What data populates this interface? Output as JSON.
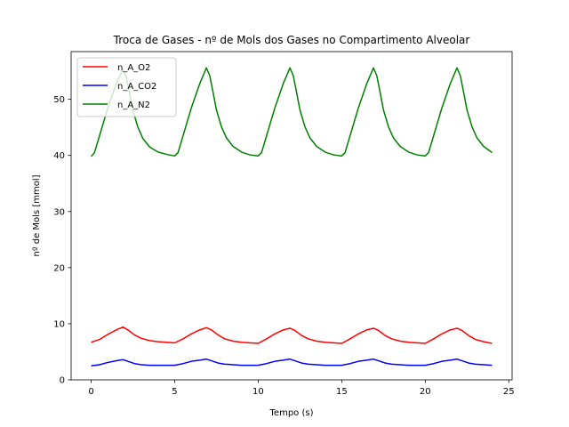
{
  "chart_data": {
    "type": "line",
    "title": "Troca de Gases - nº de Mols dos Gases no Compartimento Alveolar",
    "xlabel": "Tempo (s)",
    "ylabel": "nº de Mols [mmol]",
    "xlim": [
      -1.2,
      25.2
    ],
    "ylim": [
      0,
      58.5
    ],
    "xticks": [
      0,
      5,
      10,
      15,
      20,
      25
    ],
    "yticks": [
      0,
      10,
      20,
      30,
      40,
      50
    ],
    "grid": false,
    "legend_position": "upper-left",
    "series": [
      {
        "name": "n_A_O2",
        "color": "#ff0000",
        "x": [
          0,
          0.5,
          1.0,
          1.5,
          1.9,
          2.2,
          2.6,
          3.0,
          3.5,
          4.0,
          4.5,
          5.0,
          5.5,
          6.0,
          6.5,
          6.9,
          7.2,
          7.6,
          8.0,
          8.5,
          9.0,
          9.5,
          10.0,
          10.5,
          11.0,
          11.5,
          11.9,
          12.2,
          12.6,
          13.0,
          13.5,
          14.0,
          14.5,
          15.0,
          15.5,
          16.0,
          16.5,
          16.9,
          17.2,
          17.6,
          18.0,
          18.5,
          19.0,
          19.5,
          20.0,
          20.5,
          21.0,
          21.5,
          21.9,
          22.2,
          22.6,
          23.0,
          23.5,
          24.0
        ],
        "values": [
          6.7,
          7.2,
          8.1,
          8.9,
          9.4,
          8.9,
          8.0,
          7.4,
          7.0,
          6.8,
          6.7,
          6.6,
          7.3,
          8.2,
          8.9,
          9.3,
          8.9,
          8.0,
          7.3,
          6.9,
          6.7,
          6.6,
          6.5,
          7.3,
          8.2,
          8.9,
          9.2,
          8.8,
          7.9,
          7.3,
          6.9,
          6.7,
          6.6,
          6.5,
          7.3,
          8.2,
          8.9,
          9.2,
          8.8,
          7.9,
          7.3,
          6.9,
          6.7,
          6.6,
          6.5,
          7.3,
          8.2,
          8.9,
          9.2,
          8.8,
          7.9,
          7.2,
          6.8,
          6.5
        ]
      },
      {
        "name": "n_A_CO2",
        "color": "#0000ff",
        "x": [
          0,
          0.5,
          1.0,
          1.5,
          1.9,
          2.2,
          2.6,
          3.0,
          3.5,
          4.0,
          4.5,
          5.0,
          5.5,
          6.0,
          6.5,
          6.9,
          7.2,
          7.6,
          8.0,
          8.5,
          9.0,
          9.5,
          10.0,
          10.5,
          11.0,
          11.5,
          11.9,
          12.2,
          12.6,
          13.0,
          13.5,
          14.0,
          14.5,
          15.0,
          15.5,
          16.0,
          16.5,
          16.9,
          17.2,
          17.6,
          18.0,
          18.5,
          19.0,
          19.5,
          20.0,
          20.5,
          21.0,
          21.5,
          21.9,
          22.2,
          22.6,
          23.0,
          23.5,
          24.0
        ],
        "values": [
          2.5,
          2.7,
          3.1,
          3.4,
          3.6,
          3.3,
          2.9,
          2.7,
          2.6,
          2.6,
          2.6,
          2.6,
          2.9,
          3.3,
          3.5,
          3.7,
          3.4,
          3.0,
          2.8,
          2.7,
          2.6,
          2.6,
          2.6,
          2.9,
          3.3,
          3.5,
          3.7,
          3.4,
          3.0,
          2.8,
          2.7,
          2.6,
          2.6,
          2.6,
          2.9,
          3.3,
          3.5,
          3.7,
          3.4,
          3.0,
          2.8,
          2.7,
          2.6,
          2.6,
          2.6,
          2.9,
          3.3,
          3.5,
          3.7,
          3.4,
          3.0,
          2.8,
          2.7,
          2.6
        ]
      },
      {
        "name": "n_A_N2",
        "color": "#008000",
        "x": [
          0,
          0.2,
          0.5,
          1.0,
          1.5,
          1.9,
          2.1,
          2.3,
          2.5,
          2.8,
          3.1,
          3.5,
          4.0,
          4.5,
          5.0,
          5.2,
          5.5,
          6.0,
          6.5,
          6.9,
          7.1,
          7.3,
          7.5,
          7.8,
          8.1,
          8.5,
          9.0,
          9.5,
          10.0,
          10.2,
          10.5,
          11.0,
          11.5,
          11.9,
          12.1,
          12.3,
          12.5,
          12.8,
          13.1,
          13.5,
          14.0,
          14.5,
          15.0,
          15.2,
          15.5,
          16.0,
          16.5,
          16.9,
          17.1,
          17.3,
          17.5,
          17.8,
          18.1,
          18.5,
          19.0,
          19.5,
          20.0,
          20.2,
          20.5,
          21.0,
          21.5,
          21.9,
          22.1,
          22.3,
          22.5,
          22.8,
          23.1,
          23.5,
          24.0
        ],
        "values": [
          39.8,
          40.5,
          43.5,
          48.5,
          52.8,
          55.3,
          54.0,
          51.0,
          48.0,
          45.0,
          43.0,
          41.5,
          40.6,
          40.2,
          39.9,
          40.5,
          43.5,
          48.5,
          52.8,
          55.6,
          54.2,
          51.2,
          48.1,
          45.1,
          43.1,
          41.6,
          40.6,
          40.1,
          39.9,
          40.5,
          43.5,
          48.5,
          52.8,
          55.6,
          54.2,
          51.2,
          48.1,
          45.1,
          43.1,
          41.6,
          40.6,
          40.1,
          39.9,
          40.5,
          43.5,
          48.5,
          52.8,
          55.6,
          54.2,
          51.2,
          48.1,
          45.1,
          43.1,
          41.6,
          40.6,
          40.1,
          39.9,
          40.5,
          43.5,
          48.5,
          52.8,
          55.6,
          54.2,
          51.2,
          48.1,
          45.1,
          43.1,
          41.6,
          40.5
        ]
      }
    ]
  }
}
